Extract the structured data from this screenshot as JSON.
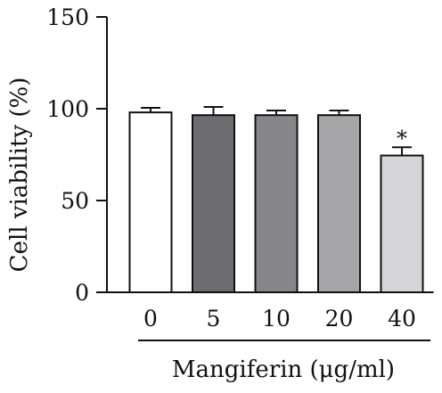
{
  "chart_data": {
    "type": "bar",
    "title": "",
    "categories": [
      "0",
      "5",
      "10",
      "20",
      "40"
    ],
    "values": [
      98,
      96.5,
      96.5,
      96.5,
      74.5
    ],
    "errors": [
      2.5,
      4.5,
      2.5,
      2.5,
      4.5
    ],
    "significance": [
      "",
      "",
      "",
      "",
      "*"
    ],
    "bar_colors": [
      "#ffffff",
      "#6d6d71",
      "#86868a",
      "#a6a6a8",
      "#d6d6d8"
    ],
    "xlabel": "Mangiferin (μg/ml)",
    "ylabel": "Cell viability (%)",
    "ylim": [
      0,
      150
    ],
    "yticks": [
      0,
      50,
      100,
      150
    ],
    "grid": false,
    "legend": "none"
  }
}
